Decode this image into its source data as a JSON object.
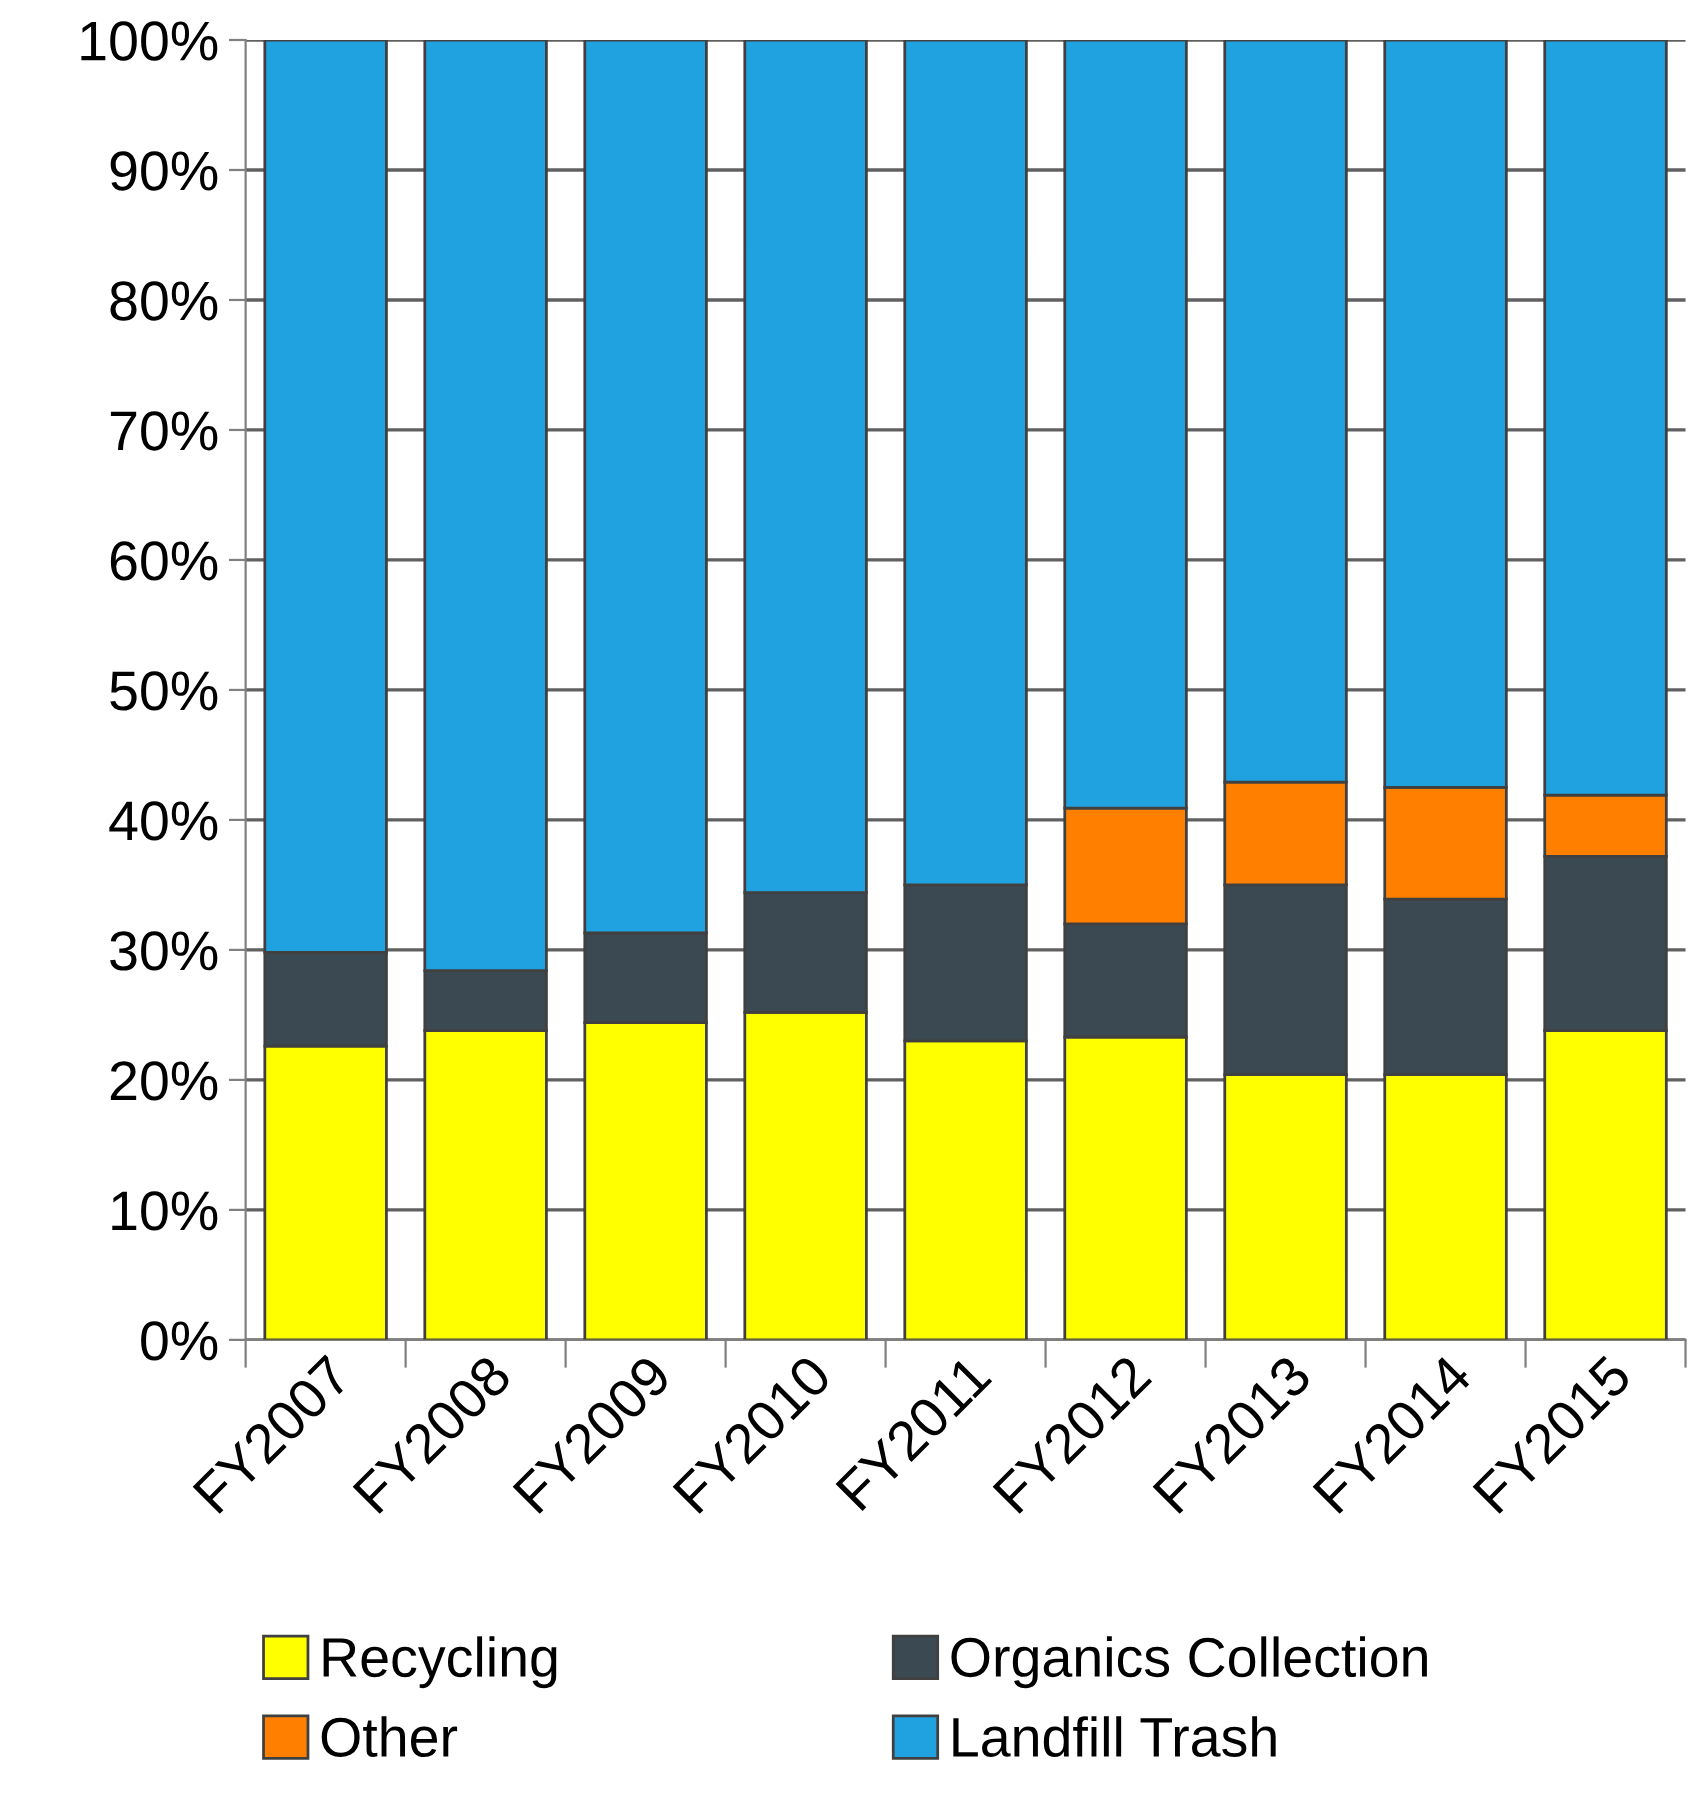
{
  "chart_data": {
    "type": "bar",
    "stacked": true,
    "categories": [
      "FY2007",
      "FY2008",
      "FY2009",
      "FY2010",
      "FY2011",
      "FY2012",
      "FY2013",
      "FY2014",
      "FY2015"
    ],
    "series": [
      {
        "name": "Recycling",
        "color": "#ffff00",
        "values": [
          22.6,
          23.8,
          24.4,
          25.2,
          23.0,
          23.3,
          20.4,
          20.4,
          23.8
        ]
      },
      {
        "name": "Organics Collection",
        "color": "#3b4a52",
        "values": [
          7.2,
          4.6,
          6.9,
          9.2,
          12.0,
          8.7,
          14.6,
          13.5,
          13.4
        ]
      },
      {
        "name": "Other",
        "color": "#ff8000",
        "values": [
          null,
          null,
          null,
          null,
          null,
          8.9,
          7.9,
          8.6,
          4.7
        ]
      },
      {
        "name": "Landfill Trash",
        "color": "#21a2e0",
        "values": [
          70.2,
          71.6,
          68.7,
          65.6,
          65.0,
          59.1,
          57.1,
          57.5,
          58.1
        ]
      }
    ],
    "ylim": [
      0,
      100
    ],
    "yticks": [
      {
        "value": 0,
        "label": "0%"
      },
      {
        "value": 10,
        "label": "10%"
      },
      {
        "value": 20,
        "label": "20%"
      },
      {
        "value": 30,
        "label": "30%"
      },
      {
        "value": 40,
        "label": "40%"
      },
      {
        "value": 50,
        "label": "50%"
      },
      {
        "value": 60,
        "label": "60%"
      },
      {
        "value": 70,
        "label": "70%"
      },
      {
        "value": 80,
        "label": "80%"
      },
      {
        "value": 90,
        "label": "90%"
      },
      {
        "value": 100,
        "label": "100%"
      }
    ],
    "grid": "y",
    "legend": "bottom"
  }
}
